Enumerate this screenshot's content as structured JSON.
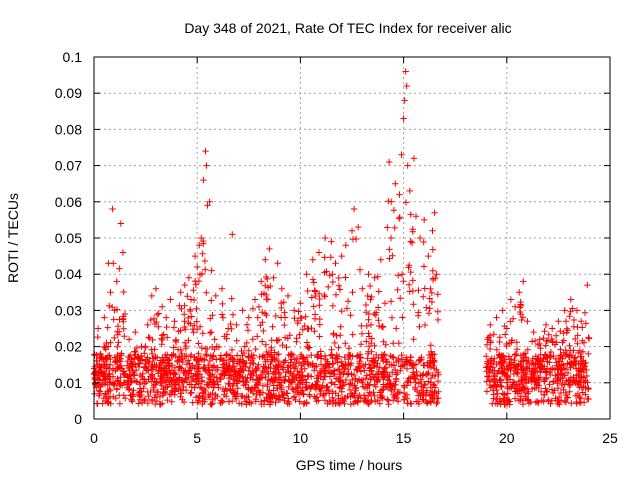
{
  "chart_data": {
    "type": "scatter",
    "title": "Day 348 of 2021, Rate Of TEC Index for receiver alic",
    "xlabel": "GPS time / hours",
    "ylabel": "ROTI / TECUs",
    "xlim": [
      0,
      25
    ],
    "ylim": [
      0,
      0.1
    ],
    "x_ticks": [
      0,
      5,
      10,
      15,
      20,
      25
    ],
    "x_tick_labels": [
      "0",
      "5",
      "10",
      "15",
      "20",
      "25"
    ],
    "y_ticks": [
      0,
      0.01,
      0.02,
      0.03,
      0.04,
      0.05,
      0.06,
      0.07,
      0.08,
      0.09,
      0.1
    ],
    "y_tick_labels": [
      "0",
      "0.01",
      "0.02",
      "0.03",
      "0.04",
      "0.05",
      "0.06",
      "0.07",
      "0.08",
      "0.09",
      "0.1"
    ],
    "grid": true,
    "marker": "+",
    "color": "#ff0000",
    "data_gap_hours": [
      16.7,
      19.0
    ],
    "series": [
      {
        "name": "ROTI",
        "points": [
          [
            0.1,
            0.012
          ],
          [
            0.2,
            0.025
          ],
          [
            0.3,
            0.018
          ],
          [
            0.5,
            0.028
          ],
          [
            0.6,
            0.021
          ],
          [
            0.7,
            0.043
          ],
          [
            0.8,
            0.035
          ],
          [
            0.9,
            0.058
          ],
          [
            1.0,
            0.03
          ],
          [
            1.1,
            0.038
          ],
          [
            1.3,
            0.054
          ],
          [
            1.4,
            0.046
          ],
          [
            1.5,
            0.029
          ],
          [
            1.7,
            0.022
          ],
          [
            2.0,
            0.024
          ],
          [
            2.3,
            0.02
          ],
          [
            2.6,
            0.026
          ],
          [
            2.8,
            0.034
          ],
          [
            3.0,
            0.036
          ],
          [
            3.3,
            0.031
          ],
          [
            3.5,
            0.028
          ],
          [
            3.7,
            0.033
          ],
          [
            3.9,
            0.027
          ],
          [
            4.2,
            0.035
          ],
          [
            4.4,
            0.037
          ],
          [
            4.6,
            0.039
          ],
          [
            4.7,
            0.033
          ],
          [
            4.9,
            0.045
          ],
          [
            5.0,
            0.042
          ],
          [
            5.1,
            0.048
          ],
          [
            5.2,
            0.05
          ],
          [
            5.3,
            0.066
          ],
          [
            5.4,
            0.074
          ],
          [
            5.45,
            0.07
          ],
          [
            5.5,
            0.059
          ],
          [
            5.6,
            0.06
          ],
          [
            5.7,
            0.041
          ],
          [
            5.9,
            0.034
          ],
          [
            6.2,
            0.036
          ],
          [
            6.5,
            0.025
          ],
          [
            6.7,
            0.051
          ],
          [
            6.9,
            0.026
          ],
          [
            7.2,
            0.03
          ],
          [
            7.5,
            0.028
          ],
          [
            7.8,
            0.033
          ],
          [
            8.1,
            0.038
          ],
          [
            8.3,
            0.044
          ],
          [
            8.5,
            0.047
          ],
          [
            8.7,
            0.039
          ],
          [
            8.9,
            0.043
          ],
          [
            9.1,
            0.036
          ],
          [
            9.4,
            0.034
          ],
          [
            9.7,
            0.03
          ],
          [
            10.0,
            0.032
          ],
          [
            10.3,
            0.04
          ],
          [
            10.6,
            0.044
          ],
          [
            10.9,
            0.046
          ],
          [
            11.2,
            0.05
          ],
          [
            11.5,
            0.049
          ],
          [
            11.7,
            0.043
          ],
          [
            12.0,
            0.045
          ],
          [
            12.2,
            0.048
          ],
          [
            12.5,
            0.052
          ],
          [
            12.6,
            0.058
          ],
          [
            12.8,
            0.053
          ],
          [
            13.0,
            0.036
          ],
          [
            13.3,
            0.04
          ],
          [
            13.6,
            0.039
          ],
          [
            13.9,
            0.044
          ],
          [
            14.1,
            0.032
          ],
          [
            14.3,
            0.071
          ],
          [
            14.4,
            0.06
          ],
          [
            14.6,
            0.065
          ],
          [
            14.8,
            0.062
          ],
          [
            14.9,
            0.073
          ],
          [
            15.0,
            0.083
          ],
          [
            15.05,
            0.088
          ],
          [
            15.1,
            0.096
          ],
          [
            15.15,
            0.092
          ],
          [
            15.2,
            0.07
          ],
          [
            15.3,
            0.063
          ],
          [
            15.5,
            0.072
          ],
          [
            15.6,
            0.056
          ],
          [
            15.8,
            0.05
          ],
          [
            16.0,
            0.055
          ],
          [
            16.2,
            0.045
          ],
          [
            16.4,
            0.052
          ],
          [
            16.5,
            0.057
          ],
          [
            16.6,
            0.04
          ],
          [
            19.2,
            0.026
          ],
          [
            19.5,
            0.028
          ],
          [
            19.8,
            0.03
          ],
          [
            20.0,
            0.025
          ],
          [
            20.2,
            0.033
          ],
          [
            20.4,
            0.031
          ],
          [
            20.6,
            0.035
          ],
          [
            20.8,
            0.038
          ],
          [
            21.0,
            0.027
          ],
          [
            21.3,
            0.024
          ],
          [
            21.6,
            0.022
          ],
          [
            21.9,
            0.026
          ],
          [
            22.2,
            0.025
          ],
          [
            22.5,
            0.027
          ],
          [
            22.8,
            0.03
          ],
          [
            23.1,
            0.033
          ],
          [
            23.4,
            0.03
          ],
          [
            23.6,
            0.027
          ],
          [
            23.9,
            0.037
          ]
        ]
      }
    ]
  }
}
